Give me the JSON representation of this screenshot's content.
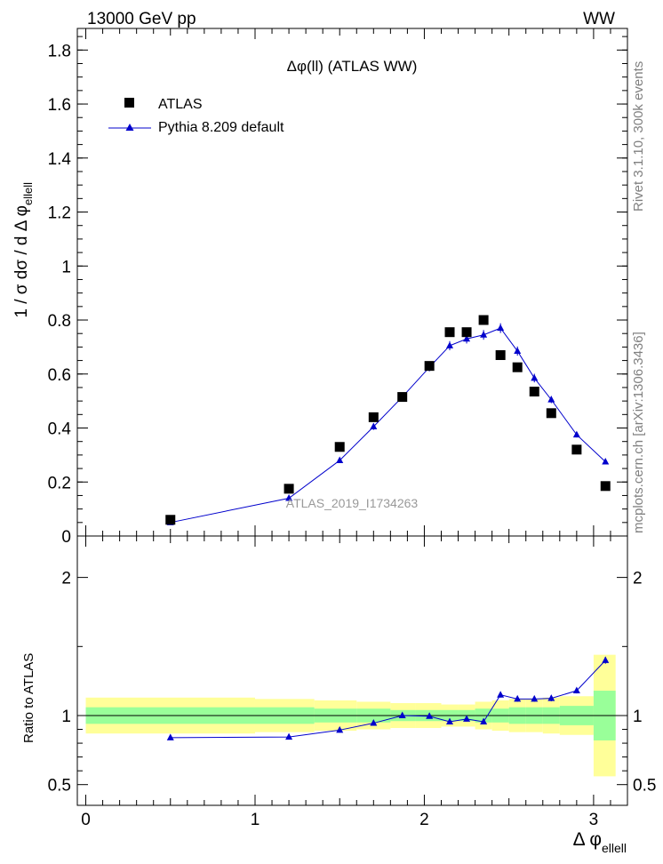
{
  "header": {
    "left": "13000 GeV pp",
    "right": "WW"
  },
  "side_labels": {
    "rivet": "Rivet 3.1.10,  300k events",
    "mcplots": "mcplots.cern.ch [arXiv:1306.3436]"
  },
  "chart_data": [
    {
      "type": "scatter",
      "title": "Δφ(ll) (ATLAS WW)",
      "ylabel": "1 / σ  dσ / d Δ φ",
      "ylabel_sub": "ellell",
      "watermark": "ATLAS_2019_I1734263",
      "xlim": [
        -0.05,
        3.2
      ],
      "ylim": [
        0,
        1.88
      ],
      "yticks": [
        0,
        0.2,
        0.4,
        0.6,
        0.8,
        1,
        1.2,
        1.4,
        1.6,
        1.8
      ],
      "ytick_labels": [
        "0",
        "0.2",
        "0.4",
        "0.6",
        "0.8",
        "1",
        "1.2",
        "1.4",
        "1.6",
        "1.8"
      ],
      "legend_position": "top-left",
      "series": [
        {
          "name": "ATLAS",
          "marker": "square",
          "color": "#000000",
          "x": [
            0.5,
            1.2,
            1.5,
            1.7,
            1.87,
            2.03,
            2.15,
            2.25,
            2.35,
            2.45,
            2.55,
            2.65,
            2.75,
            2.9,
            3.07
          ],
          "y": [
            0.06,
            0.175,
            0.33,
            0.44,
            0.515,
            0.63,
            0.755,
            0.755,
            0.8,
            0.67,
            0.625,
            0.535,
            0.455,
            0.32,
            0.185
          ]
        },
        {
          "name": "Pythia 8.209 default",
          "marker": "triangle",
          "color": "#0000cc",
          "x": [
            0.5,
            1.2,
            1.5,
            1.7,
            1.87,
            2.03,
            2.15,
            2.25,
            2.35,
            2.45,
            2.55,
            2.65,
            2.75,
            2.9,
            3.07
          ],
          "y": [
            0.05,
            0.14,
            0.28,
            0.405,
            0.515,
            0.625,
            0.705,
            0.73,
            0.745,
            0.77,
            0.685,
            0.585,
            0.505,
            0.375,
            0.275
          ],
          "err": [
            0.005,
            0.007,
            0.01,
            0.012,
            0.012,
            0.015,
            0.017,
            0.017,
            0.018,
            0.018,
            0.017,
            0.016,
            0.013,
            0.01,
            0.008
          ]
        }
      ]
    },
    {
      "type": "line",
      "ylabel": "Ratio to ATLAS",
      "xlabel": "Δ φ",
      "xlabel_sub": "ellell",
      "xlim": [
        -0.05,
        3.2
      ],
      "ylim": [
        0.35,
        2.3
      ],
      "xticks": [
        0,
        1,
        2,
        3
      ],
      "xtick_labels": [
        "0",
        "1",
        "2",
        "3"
      ],
      "yticks": [
        0.5,
        1,
        2
      ],
      "ytick_labels": [
        "0.5",
        "1",
        "2"
      ],
      "bands": {
        "edges": [
          0,
          1,
          1.35,
          1.6,
          1.8,
          1.95,
          2.1,
          2.2,
          2.3,
          2.4,
          2.5,
          2.6,
          2.7,
          2.8,
          3.0,
          3.13
        ],
        "yellow_lo": [
          0.87,
          0.88,
          0.89,
          0.9,
          0.91,
          0.91,
          0.92,
          0.92,
          0.9,
          0.89,
          0.88,
          0.88,
          0.87,
          0.86,
          0.56
        ],
        "yellow_hi": [
          1.13,
          1.12,
          1.11,
          1.1,
          1.09,
          1.09,
          1.08,
          1.08,
          1.1,
          1.11,
          1.12,
          1.12,
          1.13,
          1.14,
          1.44
        ],
        "green_lo": [
          0.94,
          0.94,
          0.95,
          0.95,
          0.96,
          0.96,
          0.96,
          0.96,
          0.95,
          0.95,
          0.94,
          0.94,
          0.94,
          0.93,
          0.82
        ],
        "green_hi": [
          1.06,
          1.06,
          1.05,
          1.05,
          1.04,
          1.04,
          1.04,
          1.04,
          1.05,
          1.05,
          1.06,
          1.06,
          1.06,
          1.07,
          1.18
        ],
        "yellow_color": "#ffff99",
        "green_color": "#99ff99"
      },
      "series": [
        {
          "name": "Pythia 8.209 default",
          "color": "#0000cc",
          "x": [
            0.5,
            1.2,
            1.5,
            1.7,
            1.87,
            2.03,
            2.15,
            2.25,
            2.35,
            2.45,
            2.55,
            2.65,
            2.75,
            2.9,
            3.07
          ],
          "y": [
            0.84,
            0.845,
            0.895,
            0.945,
            1.0,
            0.995,
            0.955,
            0.975,
            0.955,
            1.15,
            1.12,
            1.12,
            1.125,
            1.18,
            1.4
          ],
          "err": [
            0.015,
            0.015,
            0.018,
            0.016,
            0.016,
            0.014,
            0.016,
            0.018,
            0.018,
            0.02,
            0.02,
            0.02,
            0.022,
            0.02,
            0.025
          ]
        }
      ]
    }
  ]
}
